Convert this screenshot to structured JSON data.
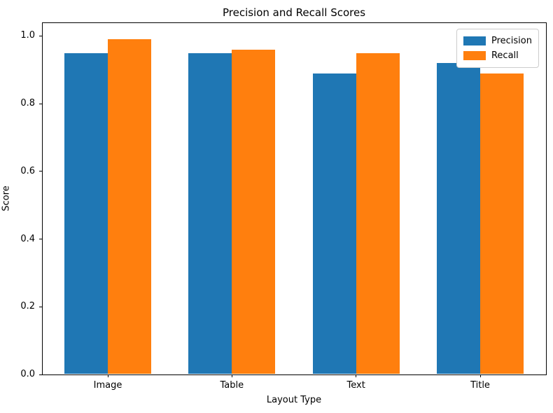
{
  "figure": {
    "title": "Precision and Recall Scores",
    "xlabel": "Layout Type",
    "ylabel": "Score"
  },
  "chart_data": {
    "type": "bar",
    "title": "Precision and Recall Scores",
    "xlabel": "Layout Type",
    "ylabel": "Score",
    "categories": [
      "Image",
      "Table",
      "Text",
      "Title"
    ],
    "series": [
      {
        "name": "Precision",
        "color": "#1f77b4",
        "values": [
          0.95,
          0.95,
          0.89,
          0.92
        ]
      },
      {
        "name": "Recall",
        "color": "#ff7f0e",
        "values": [
          0.99,
          0.96,
          0.95,
          0.89
        ]
      }
    ],
    "ylim": [
      0,
      1.04
    ],
    "yticks": [
      0.0,
      0.2,
      0.4,
      0.6,
      0.8,
      1.0
    ],
    "xlim": [
      -0.53,
      3.53
    ],
    "bar_width": 0.35,
    "grid": false,
    "legend": {
      "position": "upper right",
      "entries": [
        "Precision",
        "Recall"
      ]
    }
  }
}
